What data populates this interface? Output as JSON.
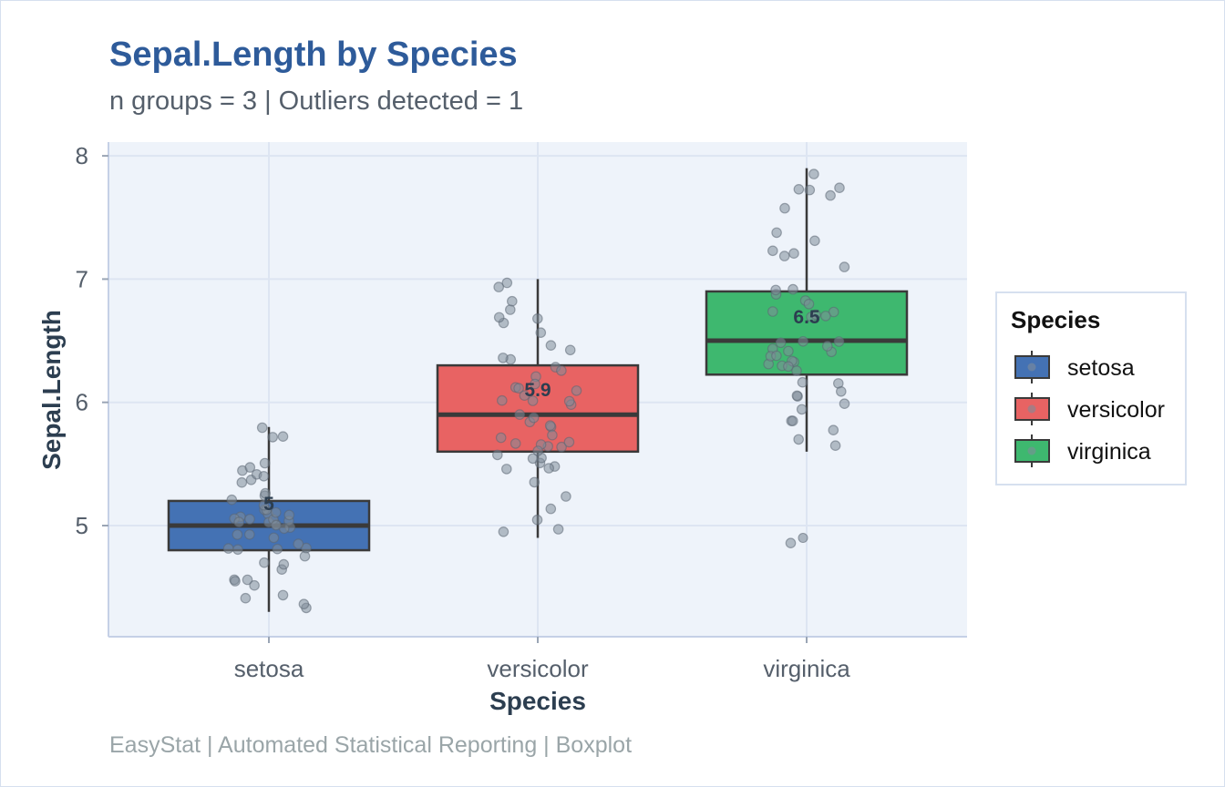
{
  "header": {
    "title": "Sepal.Length by Species",
    "subtitle": "n groups = 3  |  Outliers detected = 1"
  },
  "footer": {
    "caption": "EasyStat | Automated Statistical Reporting | Boxplot"
  },
  "chart_data": {
    "type": "box",
    "title": "Sepal.Length by Species",
    "subtitle": "n groups = 3  |  Outliers detected = 1",
    "xlabel": "Species",
    "ylabel": "Sepal.Length",
    "ylim": [
      4.1,
      8.1
    ],
    "yticks": [
      5,
      6,
      7,
      8
    ],
    "categories": [
      "setosa",
      "versicolor",
      "virginica"
    ],
    "grid": true,
    "legend": {
      "title": "Species",
      "position": "right",
      "entries": [
        "setosa",
        "versicolor",
        "virginica"
      ]
    },
    "colors": {
      "setosa": "#4472b4",
      "versicolor": "#e86363",
      "virginica": "#3eb86f",
      "panel_background": "#eef3fa",
      "grid": "#dde5f2",
      "points": "#7f8c99"
    },
    "boxes": [
      {
        "category": "setosa",
        "min": 4.3,
        "q1": 4.8,
        "median": 5.0,
        "q3": 5.2,
        "max": 5.8,
        "mean_label": "5"
      },
      {
        "category": "versicolor",
        "min": 4.9,
        "q1": 5.6,
        "median": 5.9,
        "q3": 6.3,
        "max": 7.0,
        "mean_label": "5.9"
      },
      {
        "category": "virginica",
        "min": 5.6,
        "q1": 6.225,
        "median": 6.5,
        "q3": 6.9,
        "max": 7.9,
        "mean_label": "6.5",
        "outliers": [
          4.9
        ]
      }
    ],
    "points": [
      {
        "category": "setosa",
        "values": [
          5.1,
          4.9,
          4.7,
          4.6,
          5.0,
          5.4,
          4.6,
          5.0,
          4.4,
          4.9,
          5.4,
          4.8,
          4.8,
          4.3,
          5.8,
          5.7,
          5.4,
          5.1,
          5.7,
          5.1,
          5.4,
          5.1,
          4.6,
          5.1,
          4.8,
          5.0,
          5.0,
          5.2,
          5.2,
          4.7,
          4.8,
          5.4,
          5.2,
          5.5,
          4.9,
          5.0,
          5.5,
          4.9,
          4.4,
          5.1,
          5.0,
          4.5,
          4.4,
          5.0,
          5.1,
          4.8,
          5.1,
          4.6,
          5.3,
          5.0
        ]
      },
      {
        "category": "versicolor",
        "values": [
          7.0,
          6.4,
          6.9,
          5.5,
          6.5,
          5.7,
          6.3,
          4.9,
          6.6,
          5.2,
          5.0,
          5.9,
          6.0,
          6.1,
          5.6,
          6.7,
          5.6,
          5.8,
          6.2,
          5.6,
          5.9,
          6.1,
          6.3,
          6.1,
          6.4,
          6.6,
          6.8,
          6.7,
          6.0,
          5.7,
          5.5,
          5.5,
          5.8,
          6.0,
          5.4,
          6.0,
          6.7,
          6.3,
          5.6,
          5.5,
          5.5,
          6.1,
          5.8,
          5.0,
          5.6,
          5.7,
          5.7,
          6.2,
          5.1,
          5.7
        ]
      },
      {
        "category": "virginica",
        "values": [
          6.3,
          5.8,
          7.1,
          6.3,
          6.5,
          7.6,
          4.9,
          7.3,
          6.7,
          7.2,
          6.5,
          6.4,
          6.8,
          5.7,
          5.8,
          6.4,
          6.5,
          7.7,
          7.7,
          6.0,
          6.9,
          5.6,
          7.7,
          6.3,
          6.7,
          7.2,
          6.2,
          6.1,
          6.4,
          7.2,
          7.4,
          7.9,
          6.4,
          6.3,
          6.1,
          7.7,
          6.3,
          6.4,
          6.0,
          6.9,
          6.7,
          6.9,
          5.8,
          6.8,
          6.7,
          6.7,
          6.3,
          6.5,
          6.2,
          5.9
        ]
      }
    ]
  }
}
